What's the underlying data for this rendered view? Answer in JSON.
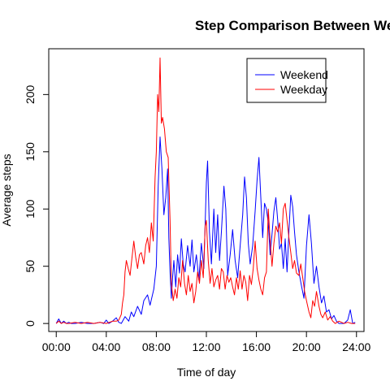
{
  "chart_data": {
    "type": "line",
    "title": "Step Comparison Between Weekdays and Weekends",
    "xlabel": "Time of day",
    "ylabel": "Average steps",
    "x_unit": "hours",
    "xlim": [
      -0.6,
      24.6
    ],
    "ylim": [
      -7,
      240
    ],
    "x_ticks": [
      {
        "value": 0,
        "label": "00:00"
      },
      {
        "value": 4,
        "label": "04:00"
      },
      {
        "value": 8,
        "label": "08:00"
      },
      {
        "value": 12,
        "label": "12:00"
      },
      {
        "value": 16,
        "label": "16:00"
      },
      {
        "value": 20,
        "label": "20:00"
      },
      {
        "value": 24,
        "label": "24:00"
      }
    ],
    "y_ticks": [
      {
        "value": 0,
        "label": "0"
      },
      {
        "value": 50,
        "label": "50"
      },
      {
        "value": 100,
        "label": "100"
      },
      {
        "value": 150,
        "label": "150"
      },
      {
        "value": 200,
        "label": "200"
      }
    ],
    "grid": false,
    "legend_position": "top-right",
    "series": [
      {
        "name": "Weekend",
        "color": "#0000ff",
        "points": [
          [
            0.0,
            0
          ],
          [
            0.2,
            4
          ],
          [
            0.4,
            0
          ],
          [
            0.6,
            2
          ],
          [
            0.8,
            0
          ],
          [
            1.0,
            1
          ],
          [
            1.2,
            0
          ],
          [
            1.5,
            0
          ],
          [
            2.0,
            1
          ],
          [
            2.5,
            0
          ],
          [
            3.0,
            0
          ],
          [
            3.5,
            1
          ],
          [
            3.8,
            0
          ],
          [
            4.0,
            3
          ],
          [
            4.2,
            0
          ],
          [
            4.5,
            2
          ],
          [
            4.8,
            5
          ],
          [
            5.0,
            1
          ],
          [
            5.2,
            0
          ],
          [
            5.5,
            6
          ],
          [
            5.8,
            2
          ],
          [
            6.0,
            10
          ],
          [
            6.2,
            6
          ],
          [
            6.5,
            15
          ],
          [
            6.8,
            8
          ],
          [
            7.0,
            20
          ],
          [
            7.3,
            25
          ],
          [
            7.5,
            16
          ],
          [
            7.8,
            30
          ],
          [
            8.0,
            50
          ],
          [
            8.15,
            120
          ],
          [
            8.3,
            163
          ],
          [
            8.45,
            135
          ],
          [
            8.6,
            95
          ],
          [
            8.75,
            110
          ],
          [
            8.9,
            135
          ],
          [
            9.0,
            75
          ],
          [
            9.1,
            45
          ],
          [
            9.2,
            22
          ],
          [
            9.3,
            40
          ],
          [
            9.4,
            55
          ],
          [
            9.55,
            32
          ],
          [
            9.7,
            60
          ],
          [
            9.85,
            44
          ],
          [
            10.0,
            74
          ],
          [
            10.15,
            52
          ],
          [
            10.3,
            45
          ],
          [
            10.5,
            68
          ],
          [
            10.7,
            50
          ],
          [
            10.85,
            73
          ],
          [
            11.0,
            45
          ],
          [
            11.2,
            60
          ],
          [
            11.4,
            38
          ],
          [
            11.6,
            70
          ],
          [
            11.8,
            48
          ],
          [
            12.0,
            123
          ],
          [
            12.1,
            142
          ],
          [
            12.25,
            80
          ],
          [
            12.4,
            52
          ],
          [
            12.6,
            100
          ],
          [
            12.75,
            62
          ],
          [
            12.9,
            95
          ],
          [
            13.05,
            55
          ],
          [
            13.2,
            80
          ],
          [
            13.4,
            120
          ],
          [
            13.55,
            100
          ],
          [
            13.7,
            42
          ],
          [
            13.9,
            60
          ],
          [
            14.1,
            82
          ],
          [
            14.3,
            55
          ],
          [
            14.5,
            40
          ],
          [
            14.7,
            68
          ],
          [
            14.9,
            95
          ],
          [
            15.05,
            128
          ],
          [
            15.2,
            110
          ],
          [
            15.35,
            70
          ],
          [
            15.5,
            52
          ],
          [
            15.7,
            68
          ],
          [
            15.9,
            98
          ],
          [
            16.05,
            125
          ],
          [
            16.2,
            145
          ],
          [
            16.35,
            110
          ],
          [
            16.5,
            75
          ],
          [
            16.65,
            105
          ],
          [
            16.8,
            100
          ],
          [
            16.95,
            88
          ],
          [
            17.1,
            60
          ],
          [
            17.25,
            78
          ],
          [
            17.4,
            98
          ],
          [
            17.55,
            110
          ],
          [
            17.7,
            90
          ],
          [
            17.85,
            65
          ],
          [
            18.0,
            70
          ],
          [
            18.15,
            48
          ],
          [
            18.3,
            74
          ],
          [
            18.45,
            45
          ],
          [
            18.6,
            80
          ],
          [
            18.75,
            112
          ],
          [
            18.9,
            102
          ],
          [
            19.05,
            80
          ],
          [
            19.2,
            60
          ],
          [
            19.4,
            45
          ],
          [
            19.6,
            33
          ],
          [
            19.8,
            22
          ],
          [
            20.0,
            68
          ],
          [
            20.2,
            95
          ],
          [
            20.4,
            70
          ],
          [
            20.6,
            35
          ],
          [
            20.8,
            50
          ],
          [
            21.0,
            32
          ],
          [
            21.2,
            18
          ],
          [
            21.4,
            24
          ],
          [
            21.6,
            10
          ],
          [
            21.8,
            12
          ],
          [
            22.0,
            4
          ],
          [
            22.2,
            7
          ],
          [
            22.4,
            2
          ],
          [
            22.6,
            0
          ],
          [
            23.0,
            0
          ],
          [
            23.3,
            3
          ],
          [
            23.5,
            12
          ],
          [
            23.7,
            0
          ],
          [
            23.9,
            1
          ]
        ]
      },
      {
        "name": "Weekday",
        "color": "#ff0000",
        "points": [
          [
            0.0,
            0
          ],
          [
            0.2,
            2
          ],
          [
            0.4,
            0
          ],
          [
            0.6,
            1
          ],
          [
            0.8,
            0
          ],
          [
            1.0,
            0
          ],
          [
            1.5,
            1
          ],
          [
            2.0,
            0
          ],
          [
            2.5,
            1
          ],
          [
            3.0,
            0
          ],
          [
            3.5,
            1
          ],
          [
            4.0,
            0
          ],
          [
            4.5,
            2
          ],
          [
            4.8,
            2
          ],
          [
            5.0,
            3
          ],
          [
            5.2,
            8
          ],
          [
            5.3,
            18
          ],
          [
            5.4,
            25
          ],
          [
            5.5,
            45
          ],
          [
            5.6,
            55
          ],
          [
            5.75,
            48
          ],
          [
            5.9,
            42
          ],
          [
            6.0,
            52
          ],
          [
            6.2,
            72
          ],
          [
            6.35,
            58
          ],
          [
            6.5,
            48
          ],
          [
            6.65,
            60
          ],
          [
            6.8,
            62
          ],
          [
            7.0,
            52
          ],
          [
            7.15,
            68
          ],
          [
            7.3,
            75
          ],
          [
            7.45,
            62
          ],
          [
            7.6,
            88
          ],
          [
            7.75,
            72
          ],
          [
            7.9,
            128
          ],
          [
            8.0,
            150
          ],
          [
            8.1,
            200
          ],
          [
            8.2,
            185
          ],
          [
            8.3,
            232
          ],
          [
            8.4,
            175
          ],
          [
            8.5,
            180
          ],
          [
            8.65,
            170
          ],
          [
            8.8,
            150
          ],
          [
            8.95,
            145
          ],
          [
            9.1,
            90
          ],
          [
            9.2,
            35
          ],
          [
            9.35,
            20
          ],
          [
            9.5,
            30
          ],
          [
            9.65,
            22
          ],
          [
            9.8,
            40
          ],
          [
            9.95,
            32
          ],
          [
            10.1,
            55
          ],
          [
            10.25,
            35
          ],
          [
            10.4,
            25
          ],
          [
            10.55,
            42
          ],
          [
            10.7,
            28
          ],
          [
            10.85,
            35
          ],
          [
            11.0,
            18
          ],
          [
            11.15,
            28
          ],
          [
            11.3,
            45
          ],
          [
            11.45,
            35
          ],
          [
            11.6,
            55
          ],
          [
            11.75,
            40
          ],
          [
            11.9,
            85
          ],
          [
            12.0,
            90
          ],
          [
            12.15,
            55
          ],
          [
            12.3,
            35
          ],
          [
            12.45,
            48
          ],
          [
            12.6,
            32
          ],
          [
            12.75,
            38
          ],
          [
            12.9,
            42
          ],
          [
            13.05,
            30
          ],
          [
            13.2,
            48
          ],
          [
            13.35,
            45
          ],
          [
            13.5,
            30
          ],
          [
            13.65,
            42
          ],
          [
            13.8,
            36
          ],
          [
            13.95,
            40
          ],
          [
            14.1,
            32
          ],
          [
            14.25,
            25
          ],
          [
            14.4,
            40
          ],
          [
            14.55,
            30
          ],
          [
            14.7,
            46
          ],
          [
            14.85,
            30
          ],
          [
            15.0,
            42
          ],
          [
            15.15,
            36
          ],
          [
            15.3,
            20
          ],
          [
            15.45,
            42
          ],
          [
            15.6,
            34
          ],
          [
            15.75,
            48
          ],
          [
            15.9,
            72
          ],
          [
            16.05,
            48
          ],
          [
            16.2,
            38
          ],
          [
            16.35,
            30
          ],
          [
            16.5,
            25
          ],
          [
            16.65,
            40
          ],
          [
            16.8,
            45
          ],
          [
            16.95,
            100
          ],
          [
            17.1,
            72
          ],
          [
            17.25,
            50
          ],
          [
            17.4,
            70
          ],
          [
            17.55,
            85
          ],
          [
            17.7,
            80
          ],
          [
            17.85,
            88
          ],
          [
            18.0,
            70
          ],
          [
            18.15,
            100
          ],
          [
            18.3,
            105
          ],
          [
            18.45,
            90
          ],
          [
            18.6,
            75
          ],
          [
            18.75,
            62
          ],
          [
            18.9,
            48
          ],
          [
            19.05,
            55
          ],
          [
            19.2,
            44
          ],
          [
            19.4,
            42
          ],
          [
            19.55,
            52
          ],
          [
            19.7,
            40
          ],
          [
            19.85,
            28
          ],
          [
            20.0,
            20
          ],
          [
            20.2,
            10
          ],
          [
            20.35,
            5
          ],
          [
            20.5,
            20
          ],
          [
            20.65,
            15
          ],
          [
            20.8,
            28
          ],
          [
            21.0,
            15
          ],
          [
            21.15,
            8
          ],
          [
            21.3,
            5
          ],
          [
            21.5,
            10
          ],
          [
            21.7,
            3
          ],
          [
            21.9,
            6
          ],
          [
            22.1,
            2
          ],
          [
            22.3,
            0
          ],
          [
            22.6,
            2
          ],
          [
            23.0,
            0
          ],
          [
            23.3,
            1
          ],
          [
            23.6,
            0
          ],
          [
            23.9,
            0
          ]
        ]
      }
    ]
  }
}
